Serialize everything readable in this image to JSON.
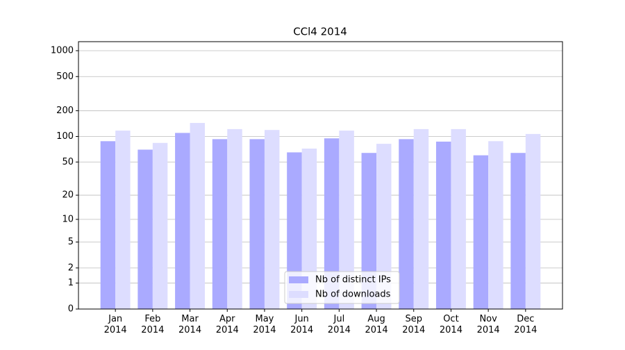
{
  "chart_data": {
    "type": "bar",
    "title": "CCl4 2014",
    "categories": [
      "Jan\n2014",
      "Feb\n2014",
      "Mar\n2014",
      "Apr\n2014",
      "May\n2014",
      "Jun\n2014",
      "Jul\n2014",
      "Aug\n2014",
      "Sep\n2014",
      "Oct\n2014",
      "Nov\n2014",
      "Dec\n2014"
    ],
    "series": [
      {
        "name": "Nb of distinct IPs",
        "color": "#aaaaff",
        "values": [
          88,
          70,
          110,
          93,
          93,
          65,
          95,
          64,
          93,
          87,
          60,
          64
        ]
      },
      {
        "name": "Nb of downloads",
        "color": "#ddddff",
        "values": [
          117,
          84,
          144,
          122,
          119,
          72,
          117,
          82,
          122,
          122,
          88,
          107
        ]
      }
    ],
    "yscale": "log1p",
    "ylim": [
      0,
      1273
    ],
    "yticks": [
      0,
      1,
      2,
      5,
      10,
      20,
      50,
      100,
      200,
      500,
      1000
    ],
    "grid": true,
    "legend": "lower center"
  }
}
